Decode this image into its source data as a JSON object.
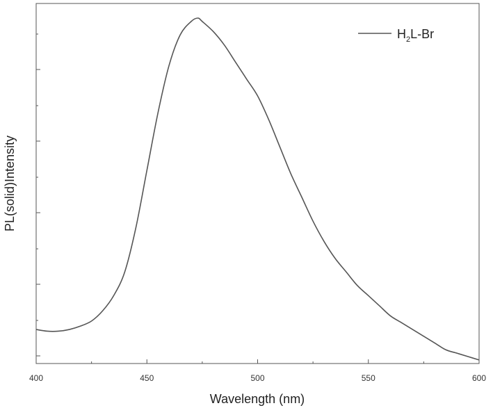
{
  "chart_data": {
    "type": "line",
    "title": "",
    "xlabel": "Wavelength (nm)",
    "ylabel": "PL(solid)Intensity",
    "xlim": [
      400,
      600
    ],
    "ylim": [
      0,
      1
    ],
    "x_ticks": [
      400,
      450,
      500,
      550,
      600
    ],
    "x_tick_labels": [
      "400",
      "450",
      "500",
      "550",
      "600"
    ],
    "y_tick_labels_shown": false,
    "grid": false,
    "legend": {
      "placement": "top-right"
    },
    "series": [
      {
        "name": "H2L-Br",
        "name_main": "H",
        "name_sub": "2",
        "name_rest": "L-Br",
        "color": "#555555",
        "x": [
          400,
          405,
          410,
          415,
          420,
          425,
          430,
          435,
          440,
          445,
          450,
          455,
          460,
          465,
          470,
          473,
          475,
          480,
          485,
          490,
          495,
          500,
          505,
          510,
          515,
          520,
          525,
          530,
          535,
          540,
          545,
          550,
          555,
          560,
          565,
          570,
          575,
          580,
          585,
          590,
          595,
          600
        ],
        "y": [
          0.08,
          0.075,
          0.075,
          0.08,
          0.09,
          0.105,
          0.135,
          0.18,
          0.25,
          0.38,
          0.55,
          0.72,
          0.86,
          0.95,
          0.99,
          1.0,
          0.99,
          0.96,
          0.92,
          0.87,
          0.82,
          0.77,
          0.7,
          0.62,
          0.54,
          0.47,
          0.4,
          0.34,
          0.29,
          0.25,
          0.21,
          0.18,
          0.15,
          0.12,
          0.1,
          0.08,
          0.06,
          0.04,
          0.02,
          0.01,
          0.0,
          -0.01
        ]
      }
    ]
  }
}
